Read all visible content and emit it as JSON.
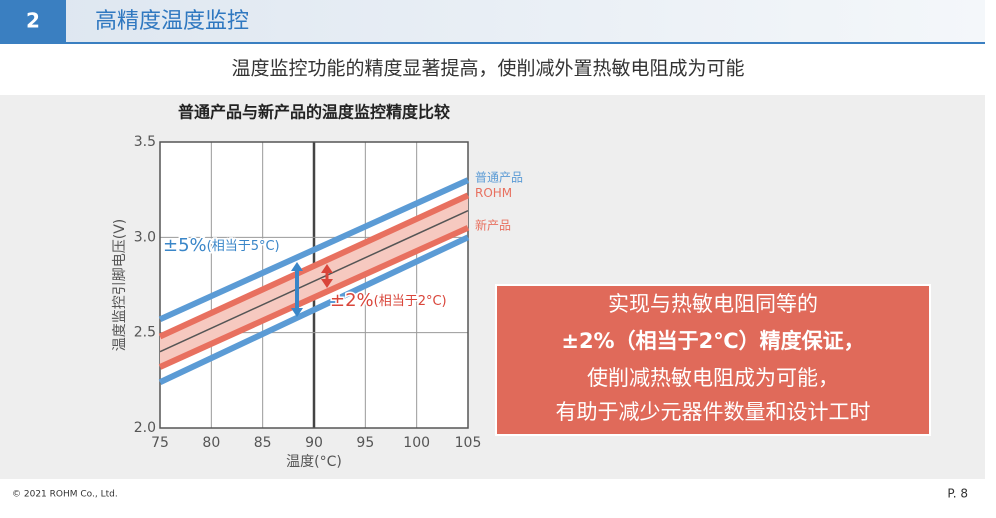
{
  "header": {
    "number": "2",
    "title": "高精度温度监控"
  },
  "subtitle": "温度监控功能的精度显著提高，使削减外置热敏电阻成为可能",
  "chart_data": {
    "type": "line",
    "title": "普通产品与新产品的温度监控精度比较",
    "x_label": "温度(°C)",
    "y_label": "温度监控引脚电压(V)",
    "x": [
      75,
      105
    ],
    "xlim": [
      75,
      105
    ],
    "xticks": [
      75,
      80,
      85,
      90,
      95,
      100,
      105
    ],
    "highlight_x": 90,
    "ylim": [
      2.0,
      3.5
    ],
    "yticks": [
      {
        "value": 2,
        "label": "2.0"
      },
      2.5,
      {
        "value": 3,
        "label": "3.0"
      },
      3.5
    ],
    "grid": true,
    "series": [
      {
        "name": "普通产品",
        "color": "#5b9bd5",
        "values": [
          2.57,
          3.3
        ]
      },
      {
        "color": "#5b9bd5",
        "values": [
          2.24,
          3.0
        ]
      },
      {
        "name": "ROHM",
        "color": "#e8705f",
        "values": [
          2.48,
          3.22
        ]
      },
      {
        "name": "新产品",
        "color": "#e8705f",
        "values": [
          2.32,
          3.05
        ]
      },
      {
        "color": "#555555",
        "values": [
          2.4,
          3.14
        ]
      }
    ],
    "annotations": [
      {
        "text": "±5%",
        "note": "(相当于5°C)",
        "color": "#3a86c8"
      },
      {
        "text": "±2%",
        "note": "(相当于2°C)",
        "color": "#d9453a"
      }
    ]
  },
  "callout": [
    "实现与热敏电阻同等的",
    "±2%（相当于2℃）精度保证，",
    "使削减热敏电阻成为可能，",
    "有助于减少元器件数量和设计工时"
  ],
  "footer": {
    "copyright": "© 2021 ROHM Co., Ltd.",
    "page": "P. 8"
  }
}
